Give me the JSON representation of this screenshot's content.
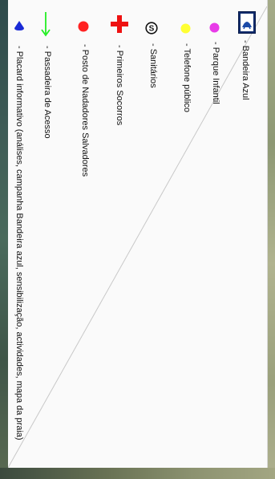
{
  "legend": {
    "items": [
      {
        "icon": "blue-flag-icon",
        "label": "- Bandeira Azul"
      },
      {
        "icon": "playground-icon",
        "label": "- Parque Infantil",
        "color": "#e83be8"
      },
      {
        "icon": "public-phone-icon",
        "label": "- Telefone público",
        "color": "#ffff33"
      },
      {
        "icon": "sanitary-icon",
        "label": "- Sanitários"
      },
      {
        "icon": "first-aid-icon",
        "label": "- Primeiros Socorros",
        "color": "#ee1111"
      },
      {
        "icon": "lifeguard-post-icon",
        "label": "- Posto de Nadadores Salvadores",
        "color": "#ff2222"
      },
      {
        "icon": "access-walkway-icon",
        "label": "- Passadeira de Acesso",
        "color": "#22ee22"
      },
      {
        "icon": "info-board-icon",
        "label": "- Placard informativo (análises, campanha Bandeira azul, sensibilização, actividades, mapa da praia)",
        "color": "#1a2ad6"
      }
    ]
  }
}
